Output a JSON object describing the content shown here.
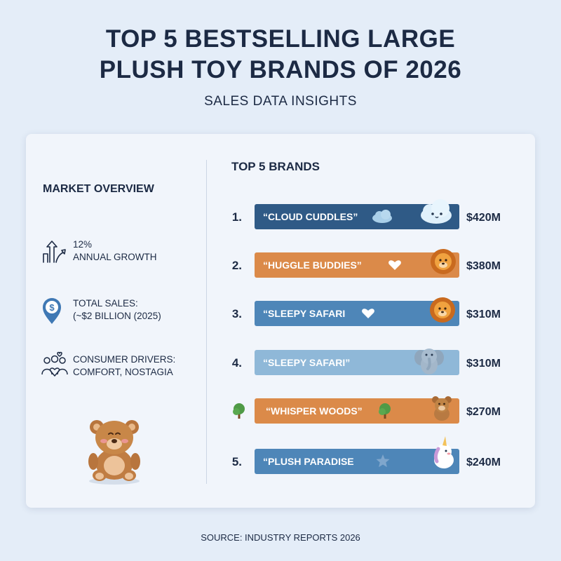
{
  "title_line1": "TOP 5 BESTSELLING LARGE",
  "title_line2": "PLUSH TOY BRANDS OF 2026",
  "subtitle": "SALES DATA INSIGHTS",
  "overview": {
    "title": "MARKET OVERVIEW",
    "stats": [
      {
        "icon": "growth-arrows-icon",
        "line1": "12%",
        "line2": "ANNUAL GROWTH"
      },
      {
        "icon": "dollar-pin-icon",
        "line1": "TOTAL SALES:",
        "line2": "(~$2 BILLION (2025)"
      },
      {
        "icon": "family-heart-icon",
        "line1": "CONSUMER DRIVERS:",
        "line2": "COMFORT, NOSTAGIA"
      }
    ]
  },
  "brands_title": "TOP 5 BRANDS",
  "source": "SOURCE: INDUSTRY REPORTS 2026",
  "chart_data": {
    "type": "bar",
    "orientation": "horizontal",
    "title": "TOP 5 BRANDS",
    "categories": [
      "“CLOUD CUDDLES”",
      "“HUGGLE BUDDIES”",
      "“SLEEPY SAFARI",
      "“SLEEPY SAFARI”",
      "“WHISPER WOODS”",
      "“PLUSH PARADISE"
    ],
    "ranks": [
      "1.",
      "2.",
      "3.",
      "4.",
      "",
      "5."
    ],
    "values": [
      420,
      380,
      310,
      310,
      270,
      240
    ],
    "value_labels": [
      "$420M",
      "$380M",
      "$310M",
      "$310M",
      "$270M",
      "$240M"
    ],
    "unit": "$M",
    "colors": [
      "#2f5a86",
      "#db8a49",
      "#4e86b8",
      "#8fb8d8",
      "#db8a49",
      "#4e86b8"
    ],
    "icons": [
      "cloud-mascot-icon",
      "lion-mascot-icon",
      "lion-mascot-icon",
      "elephant-mascot-icon",
      "bear-mascot-icon",
      "unicorn-mascot-icon"
    ],
    "grid": false,
    "legend": "none"
  }
}
